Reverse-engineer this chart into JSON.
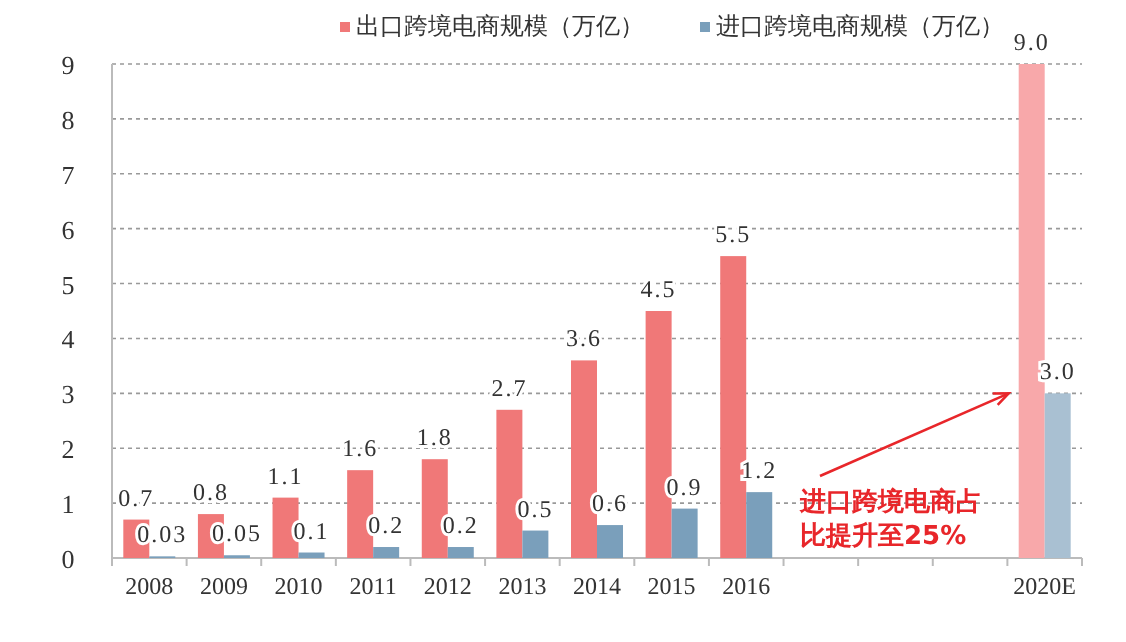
{
  "chart_data": {
    "type": "bar",
    "categories": [
      "2008",
      "2009",
      "2010",
      "2011",
      "2012",
      "2013",
      "2014",
      "2015",
      "2016",
      null,
      null,
      null,
      "2020E"
    ],
    "series": [
      {
        "name": "出口跨境电商规模（万亿）",
        "color": "#f07878",
        "colors": [
          "#f07878",
          "#f07878",
          "#f07878",
          "#f07878",
          "#f07878",
          "#f07878",
          "#f07878",
          "#f07878",
          "#f07878",
          null,
          null,
          null,
          "#f8a8aa"
        ],
        "values": [
          0.7,
          0.8,
          1.1,
          1.6,
          1.8,
          2.7,
          3.6,
          4.5,
          5.5,
          null,
          null,
          null,
          9.0
        ],
        "value_labels": [
          "0.7",
          "0.8",
          "1.1",
          "1.6",
          "1.8",
          "2.7",
          "3.6",
          "4.5",
          "5.5",
          null,
          null,
          null,
          "9.0"
        ]
      },
      {
        "name": "进口跨境电商规模（万亿）",
        "color": "#7a9fbb",
        "colors": [
          "#7a9fbb",
          "#7a9fbb",
          "#7a9fbb",
          "#7a9fbb",
          "#7a9fbb",
          "#7a9fbb",
          "#7a9fbb",
          "#7a9fbb",
          "#7a9fbb",
          null,
          null,
          null,
          "#a9c0d2"
        ],
        "values": [
          0.03,
          0.05,
          0.1,
          0.2,
          0.2,
          0.5,
          0.6,
          0.9,
          1.2,
          null,
          null,
          null,
          3.0
        ],
        "value_labels": [
          "0.03",
          "0.05",
          "0.1",
          "0.2",
          "0.2",
          "0.5",
          "0.6",
          "0.9",
          "1.2",
          null,
          null,
          null,
          "3.0"
        ]
      }
    ],
    "ylim": [
      0,
      9
    ],
    "yticks": [
      0,
      1,
      2,
      3,
      4,
      5,
      6,
      7,
      8,
      9
    ],
    "grid": "y",
    "legend": "top",
    "annotations": [
      "进口跨境电商占比提升至25%"
    ]
  }
}
